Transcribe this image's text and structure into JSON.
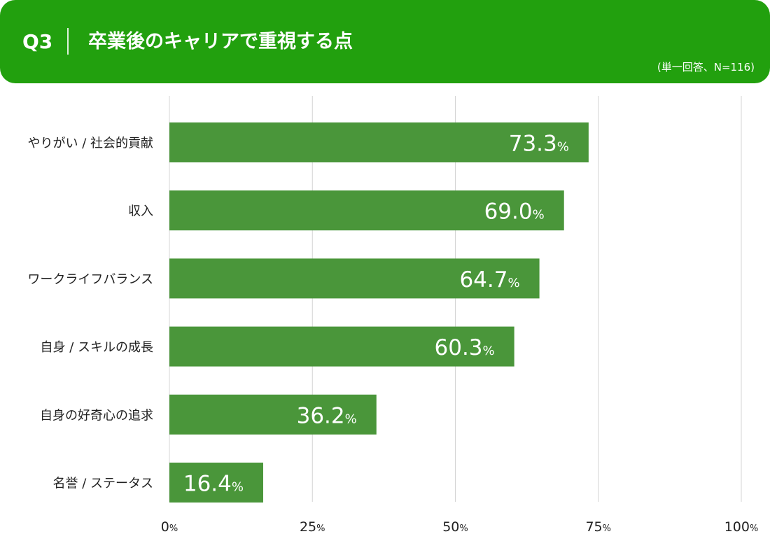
{
  "header": {
    "question_id": "Q3",
    "title": "卒業後のキャリアで重視する点",
    "note": "(単一回答、N=116)"
  },
  "colors": {
    "header_bg": "#22a00e",
    "bar": "#4a963a",
    "grid": "#d4d4d4",
    "label_text": "#222222",
    "value_text": "#ffffff"
  },
  "chart_data": {
    "type": "bar",
    "orientation": "horizontal",
    "categories": [
      "やりがい / 社会的貢献",
      "収入",
      "ワークライフバランス",
      "自身 / スキルの成長",
      "自身の好奇心の追求",
      "名誉 / ステータス"
    ],
    "values": [
      73.3,
      69.0,
      64.7,
      60.3,
      36.2,
      16.4
    ],
    "value_labels": [
      "73.3",
      "69.0",
      "64.7",
      "60.3",
      "36.2",
      "16.4"
    ],
    "value_unit": "%",
    "xlim": [
      0,
      100
    ],
    "x_ticks": [
      0,
      25,
      50,
      75,
      100
    ],
    "x_tick_labels": [
      "0",
      "25",
      "50",
      "75",
      "100"
    ],
    "tick_unit": "%",
    "grid": true
  }
}
